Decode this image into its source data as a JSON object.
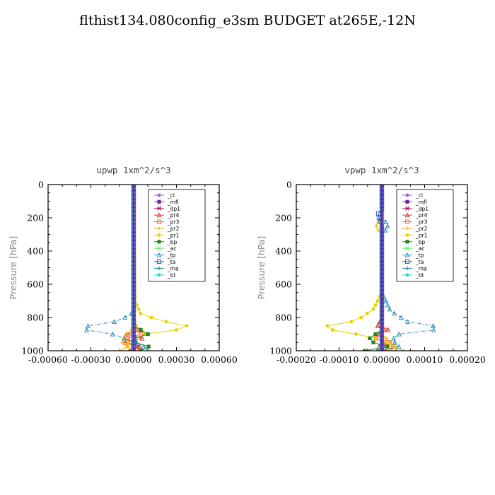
{
  "title": "flthist134.080config_e3sm  BUDGET at265E,-12N",
  "chart_data": [
    {
      "type": "line",
      "title": "upwp   1xm^2/s^3",
      "ylabel": "Pressure [hPa]",
      "xlim": [
        -0.0006,
        0.0006
      ],
      "ylim": [
        1000,
        0
      ],
      "xticks": [
        "-0.00060",
        "-0.00030",
        "0.00000",
        "0.00030",
        "0.00060"
      ],
      "yticks": [
        "0",
        "200",
        "400",
        "600",
        "800",
        "1000"
      ],
      "legend_position": "top-right",
      "series": [
        {
          "name": "_cl",
          "color": "#9966cc",
          "values": [
            [
              0,
              0
            ],
            [
              0,
              950
            ],
            [
              3e-05,
              975
            ],
            [
              -2e-05,
              1000
            ]
          ]
        },
        {
          "name": "_mfl",
          "color": "#7b1fa2",
          "values": [
            [
              0,
              0
            ],
            [
              0,
              1000
            ]
          ]
        },
        {
          "name": "_dp1",
          "color": "#a00050",
          "values": [
            [
              0,
              0
            ],
            [
              0,
              1000
            ]
          ]
        },
        {
          "name": "_pr4",
          "color": "#e03030",
          "values": [
            [
              0,
              0
            ],
            [
              0,
              850
            ],
            [
              5e-05,
              875
            ],
            [
              -5e-05,
              900
            ],
            [
              6e-05,
              925
            ],
            [
              -6e-05,
              950
            ],
            [
              4e-05,
              975
            ],
            [
              -3e-05,
              1000
            ]
          ]
        },
        {
          "name": "_pr3",
          "color": "#ff6633",
          "values": [
            [
              0,
              0
            ],
            [
              0,
              850
            ],
            [
              3e-05,
              875
            ],
            [
              5e-05,
              900
            ],
            [
              -4e-05,
              925
            ],
            [
              -3e-05,
              950
            ],
            [
              2e-05,
              1000
            ]
          ]
        },
        {
          "name": "_pr2",
          "color": "#ffaa00",
          "values": [
            [
              0,
              0
            ],
            [
              0,
              800
            ],
            [
              2e-05,
              850
            ],
            [
              -5e-05,
              900
            ],
            [
              -8e-05,
              950
            ],
            [
              -3e-05,
              980
            ],
            [
              -0.0001,
              1000
            ]
          ]
        },
        {
          "name": "_pr1",
          "color": "#e6d200",
          "values": [
            [
              0,
              0
            ],
            [
              1e-05,
              700
            ],
            [
              5e-05,
              780
            ],
            [
              0.0002,
              820
            ],
            [
              0.00043,
              860
            ],
            [
              8e-05,
              900
            ],
            [
              -3e-05,
              940
            ],
            [
              -6e-05,
              970
            ],
            [
              0,
              1000
            ]
          ]
        },
        {
          "name": "_bp",
          "color": "#1a8a1a",
          "values": [
            [
              0,
              0
            ],
            [
              0,
              850
            ],
            [
              0.0001,
              900
            ],
            [
              -5e-05,
              940
            ],
            [
              8e-05,
              960
            ],
            [
              0.00013,
              990
            ],
            [
              5e-05,
              1000
            ]
          ]
        },
        {
          "name": "_ac",
          "color": "#66ee66",
          "values": [
            [
              0,
              0
            ],
            [
              0,
              1000
            ]
          ]
        },
        {
          "name": "_tp",
          "color": "#2a8fbf",
          "values": [
            [
              0,
              0
            ],
            [
              0,
              760
            ],
            [
              -3e-05,
              790
            ],
            [
              -0.00015,
              830
            ],
            [
              -0.00032,
              850
            ],
            [
              -0.00048,
              860
            ],
            [
              -0.00018,
              890
            ],
            [
              -5e-05,
              930
            ],
            [
              5e-05,
              960
            ],
            [
              0.0001,
              1000
            ]
          ]
        },
        {
          "name": "_ta",
          "color": "#1f4fc9",
          "values": [
            [
              0,
              0
            ],
            [
              0,
              1000
            ]
          ]
        },
        {
          "name": "_ma",
          "color": "#1a8a8a",
          "values": [
            [
              0,
              0
            ],
            [
              0,
              1000
            ]
          ]
        },
        {
          "name": "_bt",
          "color": "#22d3e6",
          "values": [
            [
              0,
              0
            ],
            [
              0,
              1000
            ]
          ]
        }
      ]
    },
    {
      "type": "line",
      "title": "vpwp   1xm^2/s^3",
      "ylabel": "Pressure [hPa]",
      "xlim": [
        -0.0002,
        0.0002
      ],
      "ylim": [
        1000,
        0
      ],
      "xticks": [
        "-0.00020",
        "-0.00010",
        "0.00000",
        "0.00010",
        "0.00020"
      ],
      "yticks": [
        "0",
        "200",
        "400",
        "600",
        "800",
        "1000"
      ],
      "legend_position": "top-right",
      "series": [
        {
          "name": "_cl",
          "color": "#9966cc",
          "values": [
            [
              0,
              0
            ],
            [
              0,
              950
            ],
            [
              1e-05,
              975
            ],
            [
              -1e-05,
              1000
            ]
          ]
        },
        {
          "name": "_mfl",
          "color": "#7b1fa2",
          "values": [
            [
              0,
              0
            ],
            [
              0,
              1000
            ]
          ]
        },
        {
          "name": "_dp1",
          "color": "#a00050",
          "values": [
            [
              0,
              0
            ],
            [
              0,
              1000
            ]
          ]
        },
        {
          "name": "_pr4",
          "color": "#e03030",
          "values": [
            [
              0,
              0
            ],
            [
              0,
              800
            ],
            [
              -1e-05,
              850
            ],
            [
              2e-05,
              880
            ],
            [
              -2e-05,
              910
            ],
            [
              2e-05,
              940
            ],
            [
              -1e-05,
              970
            ],
            [
              1e-05,
              1000
            ]
          ]
        },
        {
          "name": "_pr3",
          "color": "#ff6633",
          "values": [
            [
              0,
              0
            ],
            [
              0,
              850
            ],
            [
              1e-05,
              880
            ],
            [
              -2e-05,
              920
            ],
            [
              3e-05,
              960
            ],
            [
              2e-05,
              1000
            ]
          ]
        },
        {
          "name": "_pr2",
          "color": "#ffaa00",
          "values": [
            [
              0,
              0
            ],
            [
              0,
              200
            ],
            [
              -1.5e-05,
              240
            ],
            [
              -1e-05,
              270
            ],
            [
              0,
              300
            ],
            [
              0,
              900
            ],
            [
              2e-05,
              950
            ],
            [
              3e-05,
              980
            ],
            [
              2e-05,
              1000
            ]
          ]
        },
        {
          "name": "_pr1",
          "color": "#e6d200",
          "values": [
            [
              0,
              0
            ],
            [
              0,
              650
            ],
            [
              -2e-05,
              750
            ],
            [
              -6e-05,
              820
            ],
            [
              -0.00015,
              860
            ],
            [
              -8e-05,
              890
            ],
            [
              -2e-05,
              920
            ],
            [
              2e-05,
              960
            ],
            [
              5e-05,
              1000
            ]
          ]
        },
        {
          "name": "_bp",
          "color": "#1a8a1a",
          "values": [
            [
              0,
              0
            ],
            [
              0,
              880
            ],
            [
              -3e-05,
              920
            ],
            [
              -2e-05,
              950
            ],
            [
              2e-05,
              980
            ],
            [
              -4e-05,
              1000
            ]
          ]
        },
        {
          "name": "_ac",
          "color": "#66ee66",
          "values": [
            [
              0,
              0
            ],
            [
              0,
              1000
            ]
          ]
        },
        {
          "name": "_tp",
          "color": "#2a8fbf",
          "values": [
            [
              0,
              0
            ],
            [
              0,
              200
            ],
            [
              1.5e-05,
              240
            ],
            [
              1e-05,
              270
            ],
            [
              0,
              300
            ],
            [
              0,
              650
            ],
            [
              2e-05,
              760
            ],
            [
              7e-05,
              840
            ],
            [
              0.00017,
              860
            ],
            [
              4e-05,
              900
            ],
            [
              2e-05,
              940
            ],
            [
              5e-05,
              970
            ],
            [
              -1e-05,
              1000
            ]
          ]
        },
        {
          "name": "_ta",
          "color": "#1f4fc9",
          "values": [
            [
              0,
              0
            ],
            [
              0,
              150
            ],
            [
              -1e-05,
              180
            ],
            [
              -5e-06,
              210
            ],
            [
              0,
              240
            ],
            [
              0,
              1000
            ]
          ]
        },
        {
          "name": "_ma",
          "color": "#1a8a8a",
          "values": [
            [
              0,
              0
            ],
            [
              0,
              1000
            ]
          ]
        },
        {
          "name": "_bt",
          "color": "#22d3e6",
          "values": [
            [
              0,
              0
            ],
            [
              0,
              1000
            ]
          ]
        }
      ]
    }
  ]
}
